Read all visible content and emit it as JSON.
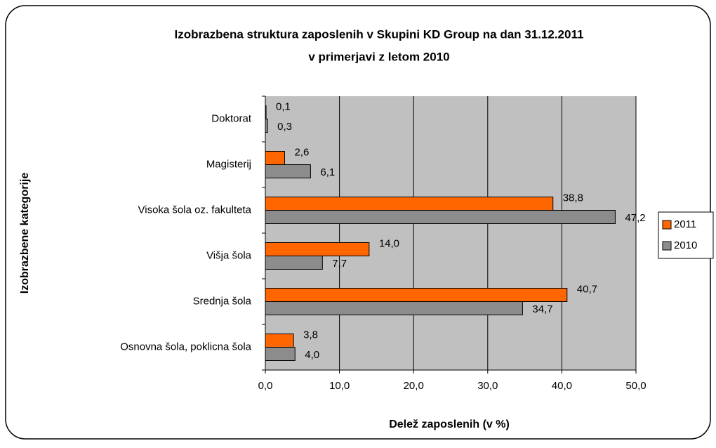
{
  "chart_data": {
    "type": "hbar",
    "title": "Izobrazbena struktura zaposlenih  v Skupini KD Group na dan 31.12.2011",
    "subtitle": "v primerjavi z letom 2010",
    "x_label": "Delež zaposlenih (v %)",
    "y_label": "Izobrazbene kategorije",
    "categories": [
      "Doktorat",
      "Magisterij",
      "Visoka šola oz. fakulteta",
      "Višja šola",
      "Srednja šola",
      "Osnovna šola, poklicna šola"
    ],
    "series": [
      {
        "name": "2011",
        "color": "#ff6600",
        "values": [
          0.1,
          2.6,
          38.8,
          14.0,
          40.7,
          3.8
        ],
        "value_labels": [
          "0,1",
          "2,6",
          "38,8",
          "14,0",
          "40,7",
          "3,8"
        ]
      },
      {
        "name": "2010",
        "color": "#8c8c8c",
        "values": [
          0.3,
          6.1,
          47.2,
          7.7,
          34.7,
          4.0
        ],
        "value_labels": [
          "0,3",
          "6,1",
          "47,2",
          "7,7",
          "34,7",
          "4,0"
        ]
      }
    ],
    "xlim": [
      0,
      50
    ],
    "xticks": [
      {
        "value": 0,
        "label": "0,0"
      },
      {
        "value": 10,
        "label": "10,0"
      },
      {
        "value": 20,
        "label": "20,0"
      },
      {
        "value": 30,
        "label": "30,0"
      },
      {
        "value": 40,
        "label": "40,0"
      },
      {
        "value": 50,
        "label": "50,0"
      }
    ],
    "grid": true,
    "legend": "right"
  }
}
